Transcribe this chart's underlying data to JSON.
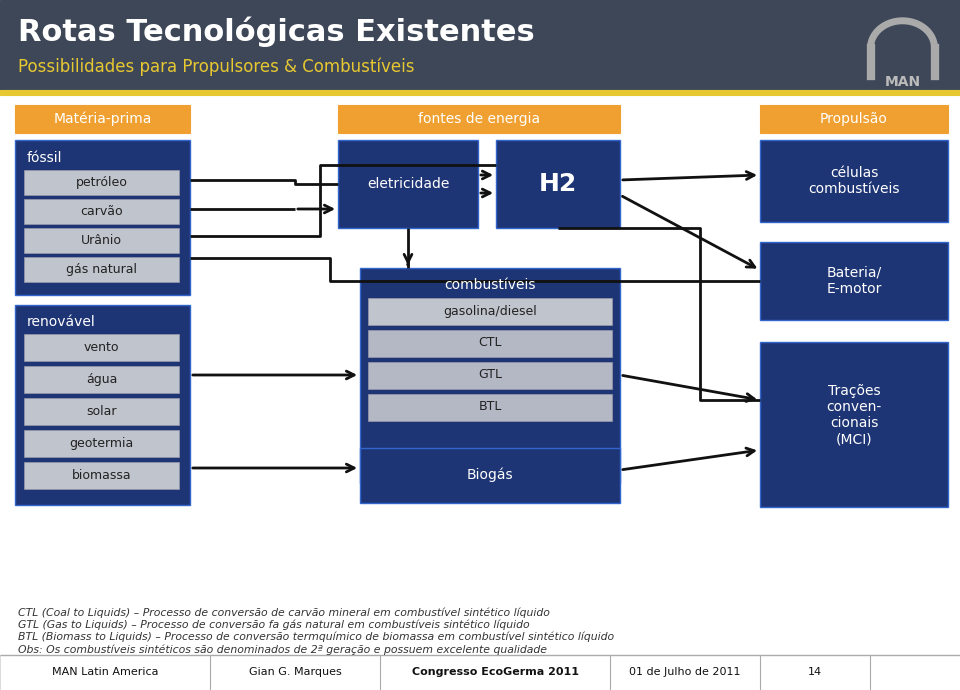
{
  "bg_color": "#3d4758",
  "yellow_color": "#e8c830",
  "orange_color": "#f0a030",
  "dark_blue": "#1e3575",
  "light_gray": "#c0c4cc",
  "white": "#ffffff",
  "black": "#111111",
  "title": "Rotas Tecnológicas Existentes",
  "subtitle": "Possibilidades para Propulsores & Combustíveis",
  "footer_items": [
    "MAN Latin America",
    "Gian G. Marques",
    "Congresso EcoGerma 2011",
    "01 de Julho de 2011",
    "14"
  ],
  "note_lines": [
    "CTL (Coal to Liquids) – Processo de conversão de carvão mineral em combustível sintético líquido",
    "GTL (Gas to Liquids) – Processo de conversão fa gás natural em combustíveis sintético líquido",
    "BTL (Biomass to Liquids) – Processo de conversão termquímico de biomassa em combustível sintético líquido",
    "Obs: Os combustíveis sintéticos são denominados de 2ª geração e possuem excelente qualidade"
  ]
}
